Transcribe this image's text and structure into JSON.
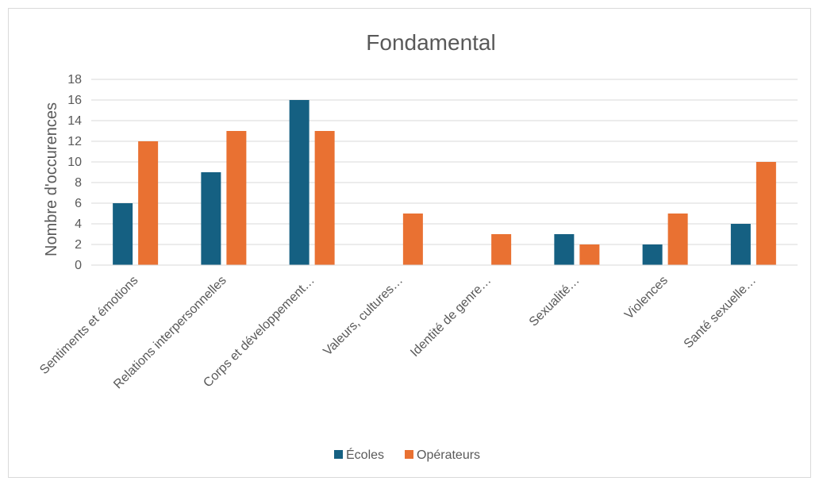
{
  "chart_data": {
    "type": "bar",
    "title": "Fondamental",
    "xlabel": "",
    "ylabel": "Nombre d'occurences",
    "ylim": [
      0,
      18
    ],
    "yticks": [
      0,
      2,
      4,
      6,
      8,
      10,
      12,
      14,
      16,
      18
    ],
    "grid": true,
    "legend_position": "bottom",
    "categories": [
      "Sentiments et émotions",
      "Relations interpersonnelles",
      "Corps et développement…",
      "Valeurs, cultures…",
      "Identité de genre…",
      "Sexualité…",
      "Violences",
      "Santé sexuelle…"
    ],
    "series": [
      {
        "name": "Écoles",
        "color": "#156082",
        "values": [
          6,
          9,
          16,
          0,
          0,
          3,
          2,
          4
        ]
      },
      {
        "name": "Opérateurs",
        "color": "#E97132",
        "values": [
          12,
          13,
          13,
          5,
          3,
          2,
          5,
          10
        ]
      }
    ]
  }
}
